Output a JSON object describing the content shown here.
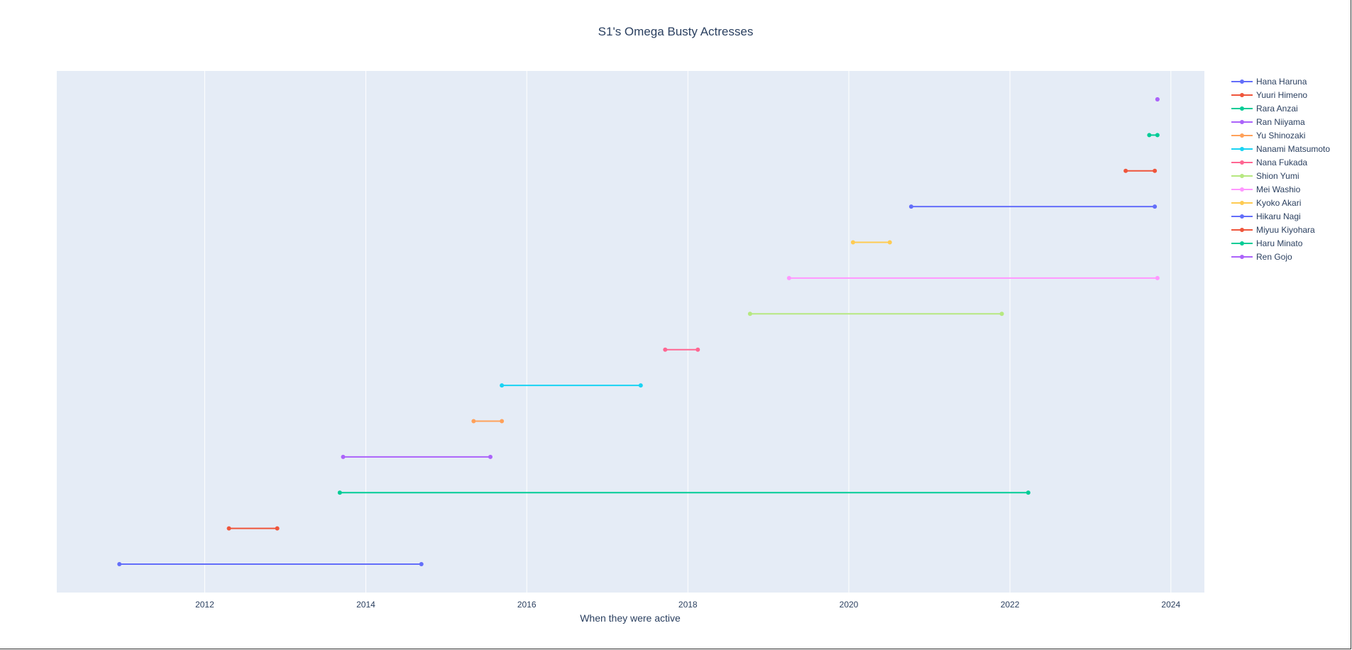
{
  "chart_data": {
    "type": "line",
    "title": "S1's Omega Busty Actresses",
    "xlabel": "When they were active",
    "ylabel": "",
    "xlim": [
      "2010-03-01",
      "2024-06-01"
    ],
    "x_ticks": [
      "2012",
      "2014",
      "2016",
      "2018",
      "2020",
      "2022",
      "2024"
    ],
    "grid": "vertical",
    "legend_position": "right",
    "series": [
      {
        "name": "Hana Haruna",
        "color": "#636efa",
        "start": "2010-12-10",
        "end": "2014-09-10"
      },
      {
        "name": "Yuuri Himeno",
        "color": "#ef553b",
        "start": "2012-04-20",
        "end": "2012-11-25"
      },
      {
        "name": "Rara Anzai",
        "color": "#00cc96",
        "start": "2013-09-05",
        "end": "2022-03-25"
      },
      {
        "name": "Ran Niiyama",
        "color": "#ab63fa",
        "start": "2013-09-20",
        "end": "2015-07-20"
      },
      {
        "name": "Yu Shinozaki",
        "color": "#ffa15a",
        "start": "2015-05-05",
        "end": "2015-09-10"
      },
      {
        "name": "Nanami Matsumoto",
        "color": "#19d3f3",
        "start": "2015-09-10",
        "end": "2017-06-01"
      },
      {
        "name": "Nana Fukada",
        "color": "#ff6692",
        "start": "2017-09-20",
        "end": "2018-02-15"
      },
      {
        "name": "Shion Yumi",
        "color": "#b6e880",
        "start": "2018-10-10",
        "end": "2021-11-25"
      },
      {
        "name": "Mei Washio",
        "color": "#ff97ff",
        "start": "2019-04-05",
        "end": "2023-11-01"
      },
      {
        "name": "Kyoko Akari",
        "color": "#fecb52",
        "start": "2020-01-20",
        "end": "2020-07-05"
      },
      {
        "name": "Hikaru Nagi",
        "color": "#636efa",
        "start": "2020-10-10",
        "end": "2023-10-20"
      },
      {
        "name": "Miyuu Kiyohara",
        "color": "#ef553b",
        "start": "2023-06-10",
        "end": "2023-10-20"
      },
      {
        "name": "Haru Minato",
        "color": "#00cc96",
        "start": "2023-09-25",
        "end": "2023-11-01"
      },
      {
        "name": "Ren Gojo",
        "color": "#ab63fa",
        "start": "2023-11-01",
        "end": "2023-11-01"
      }
    ]
  }
}
